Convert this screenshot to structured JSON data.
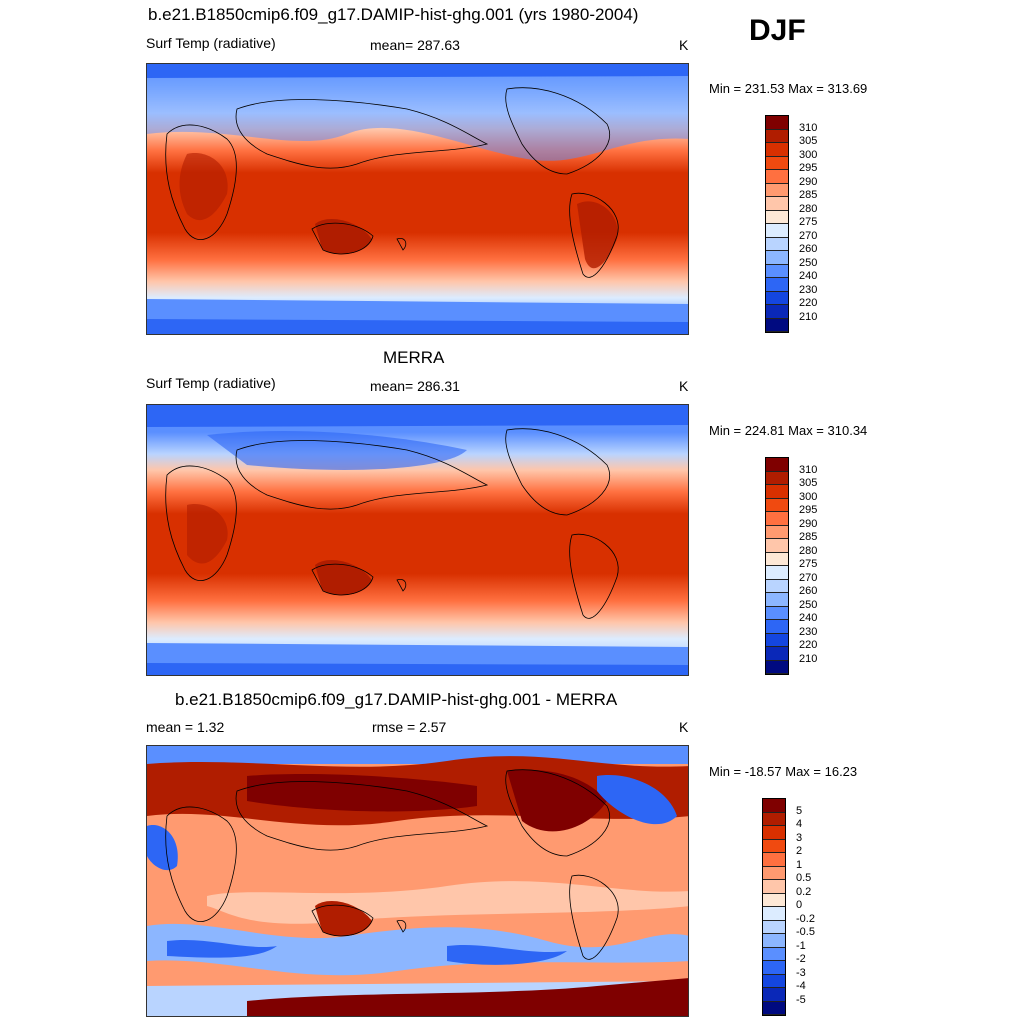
{
  "season": "DJF",
  "panels": [
    {
      "title": "b.e21.B1850cmip6.f09_g17.DAMIP-hist-ghg.001 (yrs 1980-2004)",
      "left_text": "Surf Temp (radiative)",
      "center_text": "mean= 287.63",
      "unit": "K",
      "minmax": "Min = 231.53 Max = 313.69",
      "colorbar": {
        "labels": [
          "310",
          "305",
          "300",
          "295",
          "290",
          "285",
          "280",
          "275",
          "270",
          "260",
          "250",
          "240",
          "230",
          "220",
          "210"
        ],
        "colors": [
          "#7f0000",
          "#b01d00",
          "#d83000",
          "#f04a10",
          "#ff7040",
          "#ff9a70",
          "#ffc6aa",
          "#fde8d6",
          "#dcecff",
          "#b9d4ff",
          "#8cb6ff",
          "#5a8fff",
          "#2d66f5",
          "#1446e0",
          "#0a28b8",
          "#000a80"
        ]
      }
    },
    {
      "title": "MERRA",
      "left_text": "Surf Temp (radiative)",
      "center_text": "mean= 286.31",
      "unit": "K",
      "minmax": "Min = 224.81 Max = 310.34",
      "colorbar": {
        "labels": [
          "310",
          "305",
          "300",
          "295",
          "290",
          "285",
          "280",
          "275",
          "270",
          "260",
          "250",
          "240",
          "230",
          "220",
          "210"
        ],
        "colors": [
          "#7f0000",
          "#b01d00",
          "#d83000",
          "#f04a10",
          "#ff7040",
          "#ff9a70",
          "#ffc6aa",
          "#fde8d6",
          "#dcecff",
          "#b9d4ff",
          "#8cb6ff",
          "#5a8fff",
          "#2d66f5",
          "#1446e0",
          "#0a28b8",
          "#000a80"
        ]
      }
    },
    {
      "title": "b.e21.B1850cmip6.f09_g17.DAMIP-hist-ghg.001 - MERRA",
      "left_text": "mean =   1.32",
      "center_text": "rmse =   2.57",
      "unit": "K",
      "minmax": "Min = -18.57 Max =  16.23",
      "colorbar": {
        "labels": [
          "5",
          "4",
          "3",
          "2",
          "1",
          "0.5",
          "0.2",
          "0",
          "-0.2",
          "-0.5",
          "-1",
          "-2",
          "-3",
          "-4",
          "-5"
        ],
        "colors": [
          "#7f0000",
          "#b01d00",
          "#d83000",
          "#f04a10",
          "#ff7040",
          "#ff9a70",
          "#ffc6aa",
          "#fde8d6",
          "#dcecff",
          "#b9d4ff",
          "#8cb6ff",
          "#5a8fff",
          "#2d66f5",
          "#1446e0",
          "#0a28b8",
          "#000a80"
        ]
      }
    }
  ]
}
